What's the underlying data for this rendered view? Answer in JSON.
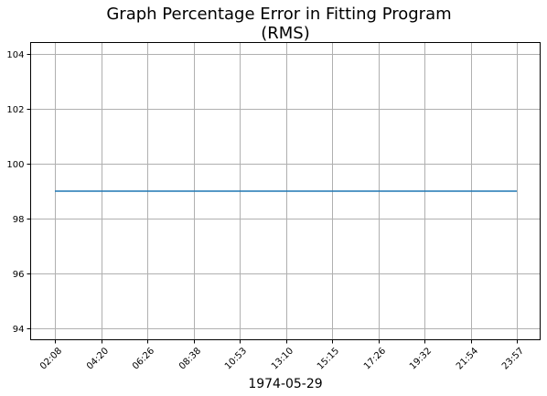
{
  "chart_data": {
    "type": "line",
    "title_lines": [
      "Graph Percentage Error in Fitting Program",
      "(RMS)"
    ],
    "xlabel": "1974-05-29",
    "ylabel": "",
    "x_tick_labels": [
      "02:08",
      "04:20",
      "06:26",
      "08:38",
      "10:53",
      "13:10",
      "15:15",
      "17:26",
      "19:32",
      "21:54",
      "23:57"
    ],
    "y_ticks": [
      94,
      96,
      98,
      100,
      102,
      104
    ],
    "ylim": [
      93.6,
      104.4
    ],
    "grid": true,
    "series": [
      {
        "color": "#1f77b4",
        "x": [
          "02:08",
          "04:20",
          "06:26",
          "08:38",
          "10:53",
          "13:10",
          "15:15",
          "17:26",
          "19:32",
          "21:54",
          "23:57"
        ],
        "values": [
          99,
          99,
          99,
          99,
          99,
          99,
          99,
          99,
          99,
          99,
          99
        ]
      }
    ]
  },
  "colors": {
    "line": "#1f77b4",
    "grid": "#b0b0b0",
    "axes": "#000000"
  }
}
